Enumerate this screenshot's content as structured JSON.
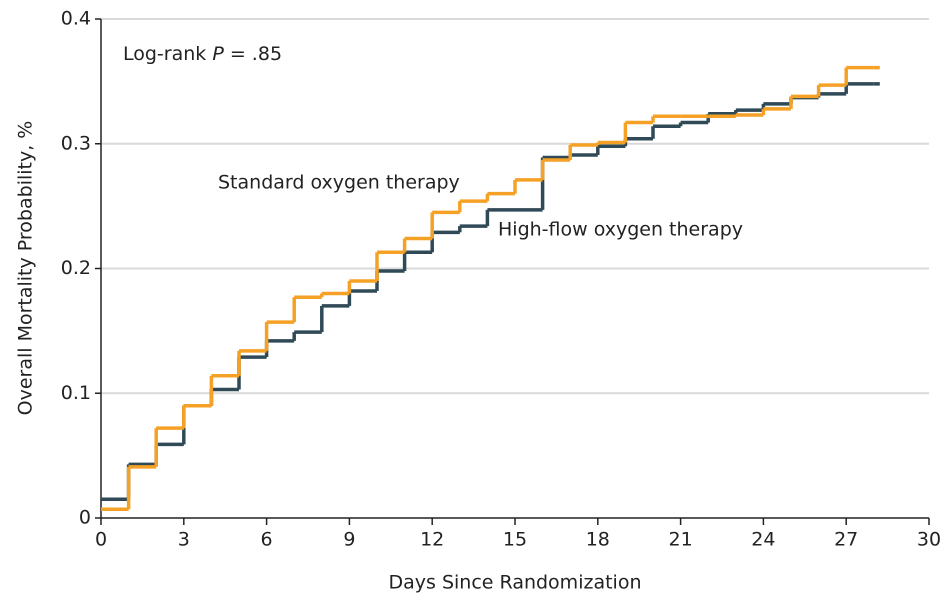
{
  "chart_data": {
    "type": "step",
    "annotation": [
      "Log-rank ",
      "P",
      " = .85"
    ],
    "x_label": "Days Since Randomization",
    "y_label": "Overall Mortality Probability, %",
    "xlim": [
      0,
      30
    ],
    "xticks": [
      0,
      3,
      6,
      9,
      12,
      15,
      18,
      21,
      24,
      27,
      30
    ],
    "ylim": [
      0,
      0.4
    ],
    "yticks": [
      0,
      0.1,
      0.2,
      0.3,
      0.4
    ],
    "grid": true,
    "x": [
      0,
      1,
      2,
      3,
      4,
      5,
      6,
      7,
      8,
      9,
      10,
      11,
      12,
      13,
      14,
      15,
      16,
      17,
      18,
      19,
      20,
      21,
      22,
      23,
      24,
      25,
      26,
      27,
      28
    ],
    "series": [
      {
        "name": "High-flow oxygen therapy",
        "color": "#2f4a56",
        "values": [
          0.015,
          0.043,
          0.059,
          0.09,
          0.103,
          0.129,
          0.142,
          0.149,
          0.17,
          0.182,
          0.198,
          0.213,
          0.229,
          0.234,
          0.247,
          0.247,
          0.289,
          0.291,
          0.298,
          0.304,
          0.314,
          0.317,
          0.324,
          0.327,
          0.332,
          0.337,
          0.34,
          0.348,
          0.348
        ]
      },
      {
        "name": "Standard oxygen therapy",
        "color": "#f5a125",
        "values": [
          0.007,
          0.041,
          0.072,
          0.09,
          0.114,
          0.134,
          0.157,
          0.177,
          0.18,
          0.19,
          0.213,
          0.224,
          0.245,
          0.254,
          0.26,
          0.271,
          0.287,
          0.299,
          0.301,
          0.317,
          0.322,
          0.322,
          0.322,
          0.323,
          0.328,
          0.338,
          0.347,
          0.361,
          0.361
        ]
      }
    ]
  }
}
